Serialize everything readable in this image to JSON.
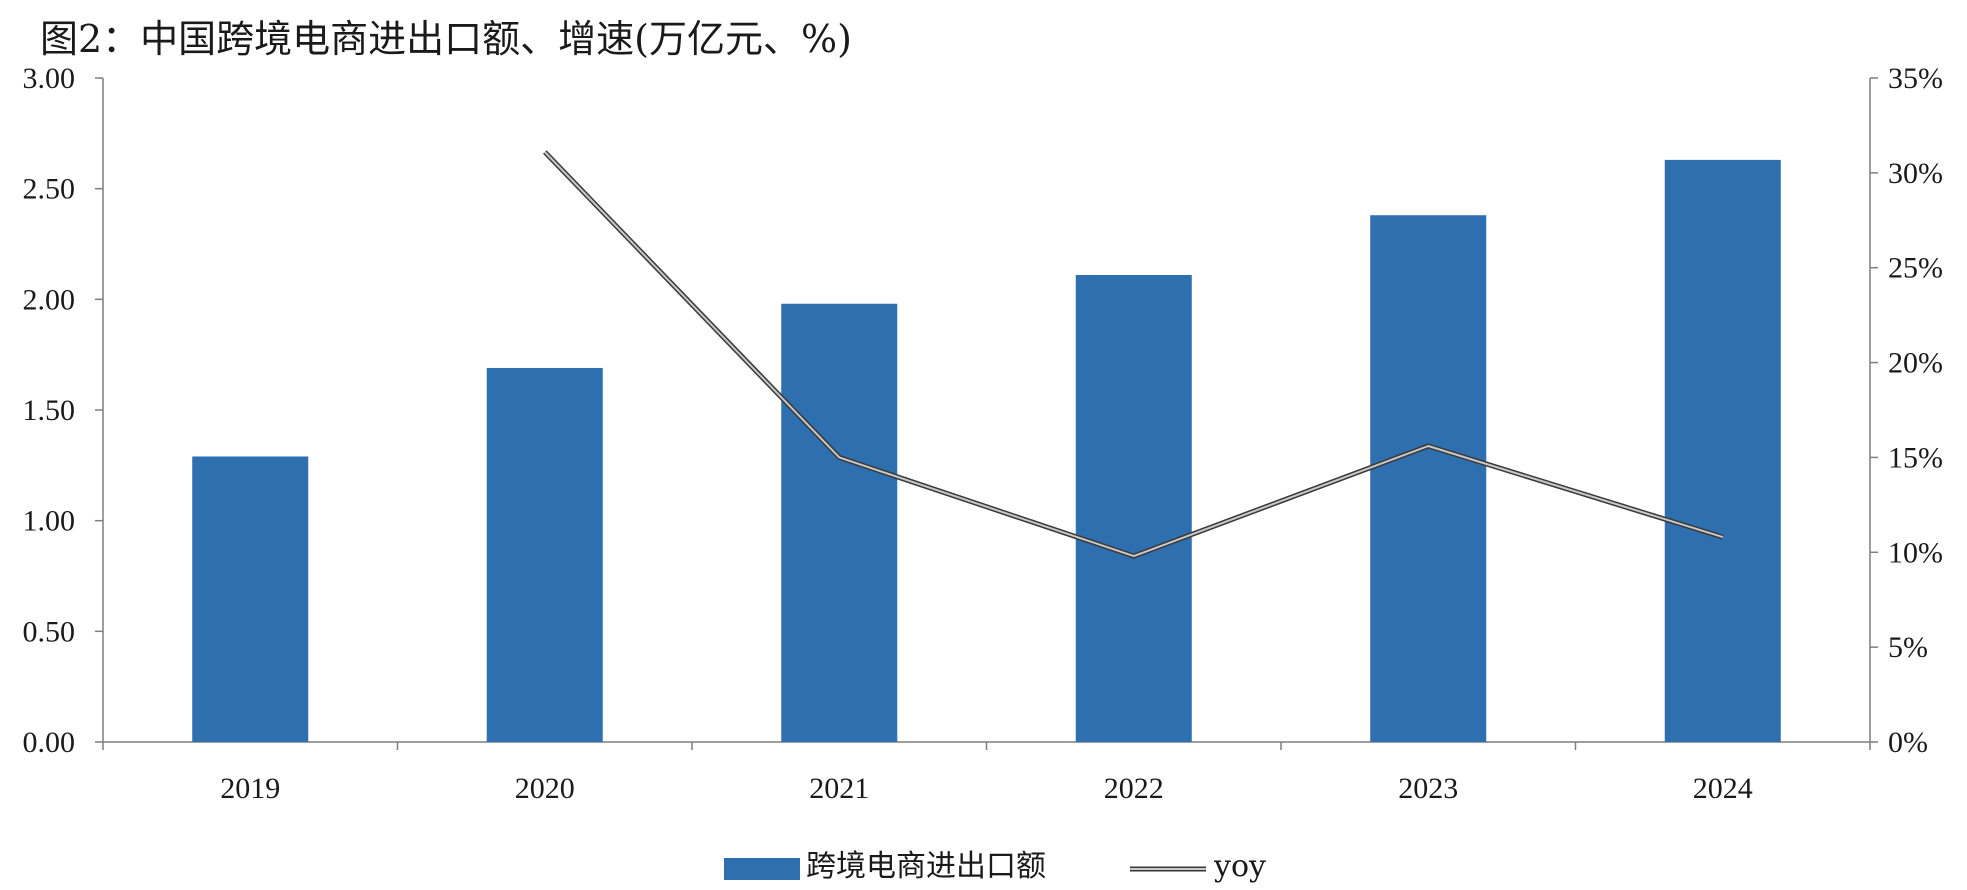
{
  "chart_data": {
    "type": "bar",
    "title": "图2：中国跨境电商进出口额、增速(万亿元、%)",
    "categories": [
      "2019",
      "2020",
      "2021",
      "2022",
      "2023",
      "2024"
    ],
    "series": [
      {
        "name": "跨境电商进出口额",
        "type": "bar",
        "axis": "left",
        "color": "#2e6fb0",
        "values": [
          1.29,
          1.69,
          1.98,
          2.11,
          2.38,
          2.63
        ]
      },
      {
        "name": "yoy",
        "type": "line",
        "axis": "right",
        "color": "#8a8a8a",
        "values": [
          null,
          31.1,
          15.0,
          9.8,
          15.6,
          10.8
        ]
      }
    ],
    "y_left": {
      "min": 0,
      "max": 3,
      "ticks": [
        "0.00",
        "0.50",
        "1.00",
        "1.50",
        "2.00",
        "2.50",
        "3.00"
      ]
    },
    "y_right": {
      "min": 0,
      "max": 35,
      "ticks": [
        "0%",
        "5%",
        "10%",
        "15%",
        "20%",
        "25%",
        "30%",
        "35%"
      ]
    },
    "grid": false,
    "legend": "bottom-center"
  }
}
